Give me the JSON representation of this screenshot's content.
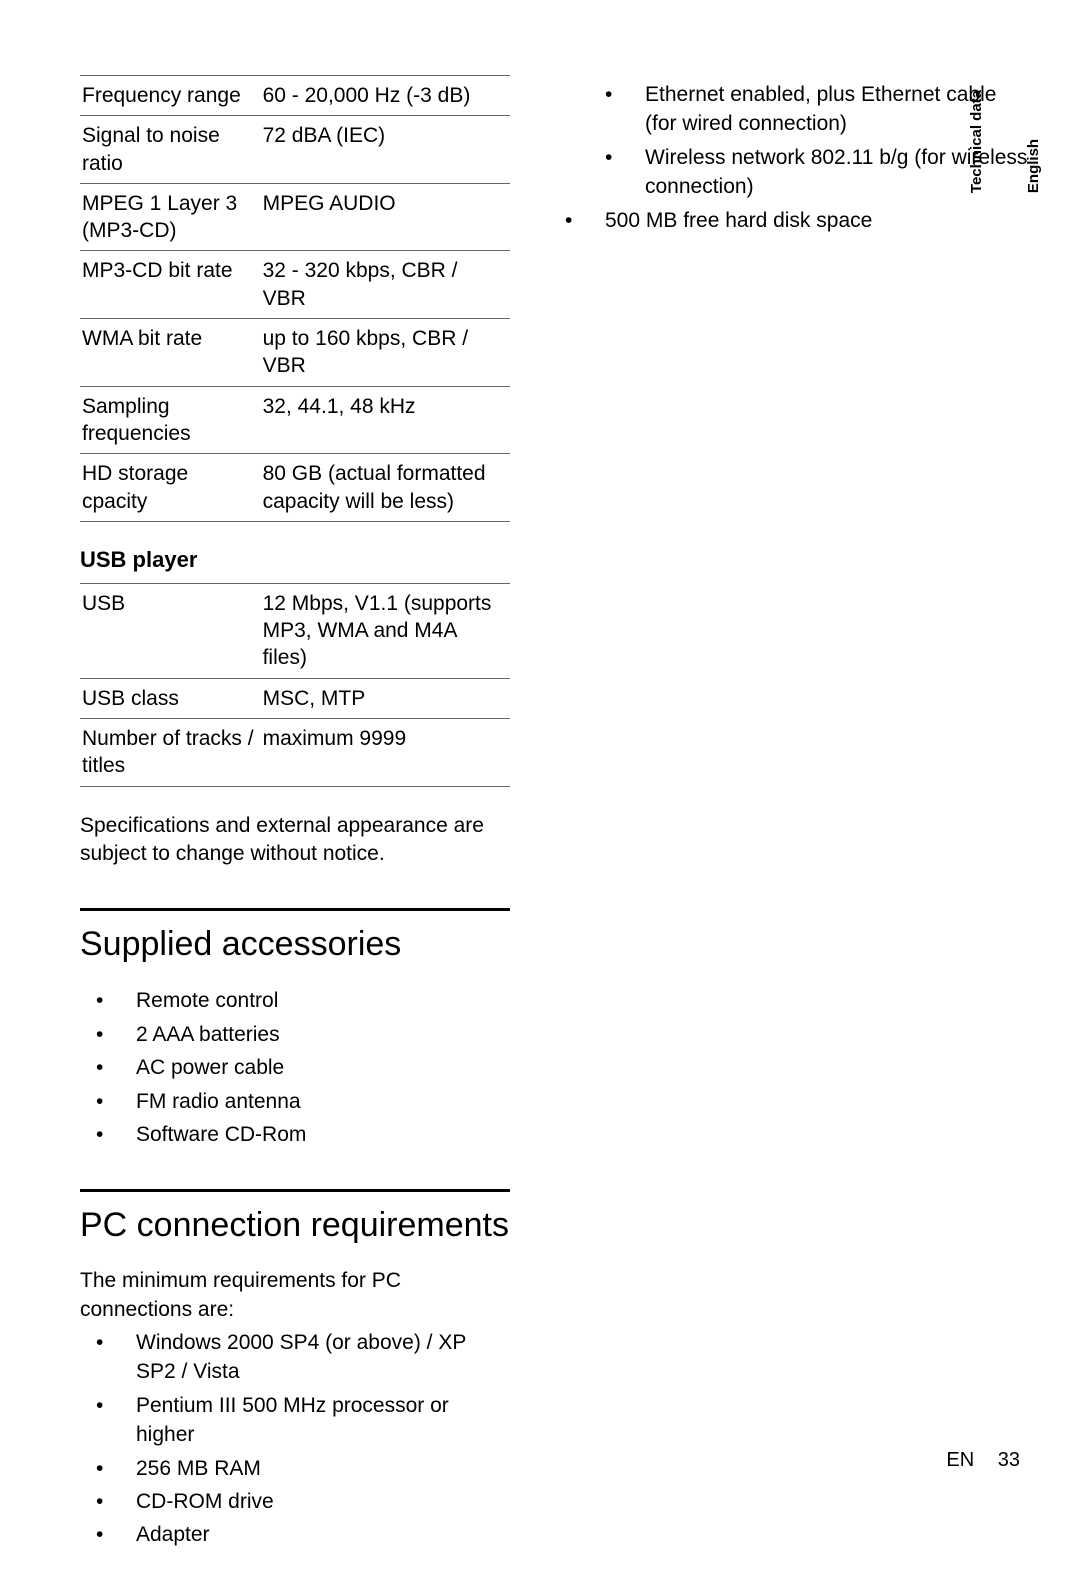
{
  "table1": {
    "rows": [
      {
        "label": "Frequency range",
        "value": "60 - 20,000 Hz (-3 dB)"
      },
      {
        "label": "Signal to noise ratio",
        "value": "72 dBA (IEC)"
      },
      {
        "label": "MPEG 1 Layer 3 (MP3-CD)",
        "value": "MPEG AUDIO"
      },
      {
        "label": "MP3-CD bit rate",
        "value": "32 - 320 kbps, CBR / VBR"
      },
      {
        "label": "WMA bit rate",
        "value": "up to 160 kbps, CBR / VBR"
      },
      {
        "label": "Sampling frequencies",
        "value": "32, 44.1, 48 kHz"
      },
      {
        "label": "HD storage cpacity",
        "value": "80 GB (actual formatted capacity will be less)"
      }
    ]
  },
  "usb_heading": "USB player",
  "table2": {
    "rows": [
      {
        "label": "USB",
        "value": "12 Mbps, V1.1 (supports MP3, WMA and M4A files)"
      },
      {
        "label": "USB class",
        "value": "MSC, MTP"
      },
      {
        "label": "Number of tracks / titles",
        "value": "maximum 9999"
      }
    ]
  },
  "note": "Specifications and external appearance are subject to change without notice.",
  "accessories": {
    "heading": "Supplied accessories",
    "items": [
      "Remote control",
      "2 AAA batteries",
      "AC power cable",
      "FM radio antenna",
      "Software CD-Rom"
    ]
  },
  "pc": {
    "heading": "PC connection requirements",
    "intro": "The minimum requirements for PC connections are:",
    "items": [
      "Windows 2000 SP4 (or above) / XP SP2 / Vista",
      "Pentium III 500 MHz processor or higher",
      "256 MB RAM",
      "CD-ROM drive",
      "Adapter"
    ],
    "sub_items": [
      "Ethernet enabled, plus Ethernet cable (for wired connection)",
      "Wireless network 802.11 b/g (for wireless connection)"
    ],
    "last_item": "500 MB free hard disk space"
  },
  "side": {
    "lang": "English",
    "section": "Technical data"
  },
  "footer": {
    "lang": "EN",
    "page": "33"
  },
  "style": {
    "page_bg": "#ffffff",
    "text_color": "#000000",
    "rule_color": "#666666",
    "thick_rule_color": "#000000",
    "body_fontsize": 21,
    "heading_fontsize": 34,
    "side_fontsize": 15
  }
}
